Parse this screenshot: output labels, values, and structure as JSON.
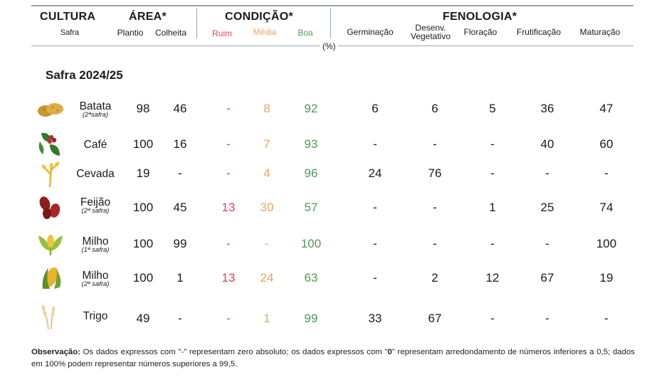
{
  "header": {
    "cultura": "CULTURA",
    "safra": "Safra",
    "area": "ÁREA*",
    "plantio": "Plantio",
    "colheita": "Colheita",
    "condicao": "CONDIÇÃO*",
    "ruim": "Ruim",
    "media": "Média",
    "boa": "Boa",
    "fenologia": "FENOLOGIA*",
    "germinacao": "Germinação",
    "desenv_line1": "Desenv.",
    "desenv_line2": "Vegetativo",
    "floracao": "Floração",
    "frutificacao": "Frutificação",
    "maturacao": "Maturação",
    "unit": "(%)"
  },
  "section_title": "Safra 2024/25",
  "rows": [
    {
      "crop": "Batata",
      "sub": "(2ªsafra)",
      "icon": "potato-icon",
      "values": [
        "98",
        "46",
        "-",
        "8",
        "92",
        "6",
        "6",
        "5",
        "36",
        "47"
      ]
    },
    {
      "crop": "Café",
      "sub": "",
      "icon": "coffee-icon",
      "values": [
        "100",
        "16",
        "-",
        "7",
        "93",
        "-",
        "-",
        "-",
        "40",
        "60"
      ]
    },
    {
      "crop": "Cevada",
      "sub": "",
      "icon": "barley-icon",
      "values": [
        "19",
        "-",
        "-",
        "4",
        "96",
        "24",
        "76",
        "-",
        "-",
        "-"
      ]
    },
    {
      "crop": "Feijão",
      "sub": "(2ª safra)",
      "icon": "bean-icon",
      "values": [
        "100",
        "45",
        "13",
        "30",
        "57",
        "-",
        "-",
        "1",
        "25",
        "74"
      ]
    },
    {
      "crop": "Milho",
      "sub": "(1ª safra)",
      "icon": "corn-plant-icon",
      "values": [
        "100",
        "99",
        "-",
        "-",
        "100",
        "-",
        "-",
        "-",
        "-",
        "100"
      ]
    },
    {
      "crop": "Milho",
      "sub": "(2ª safra)",
      "icon": "corn-cob-icon",
      "values": [
        "100",
        "1",
        "13",
        "24",
        "63",
        "-",
        "2",
        "12",
        "67",
        "19"
      ]
    },
    {
      "crop": "Trigo",
      "sub": "",
      "icon": "wheat-icon",
      "values": [
        "49",
        "-",
        "-",
        "1",
        "99",
        "33",
        "67",
        "-",
        "-",
        "-"
      ]
    }
  ],
  "note": {
    "label": "Observação:",
    "text1": " Os dados expressos com \"-\" representam zero absoluto; os dados expressos com \"",
    "zero": "0",
    "text2": "\" representam arredondamento de números inferiores a 0,5; dados em 100% podem representar números superiores a 99,5."
  }
}
